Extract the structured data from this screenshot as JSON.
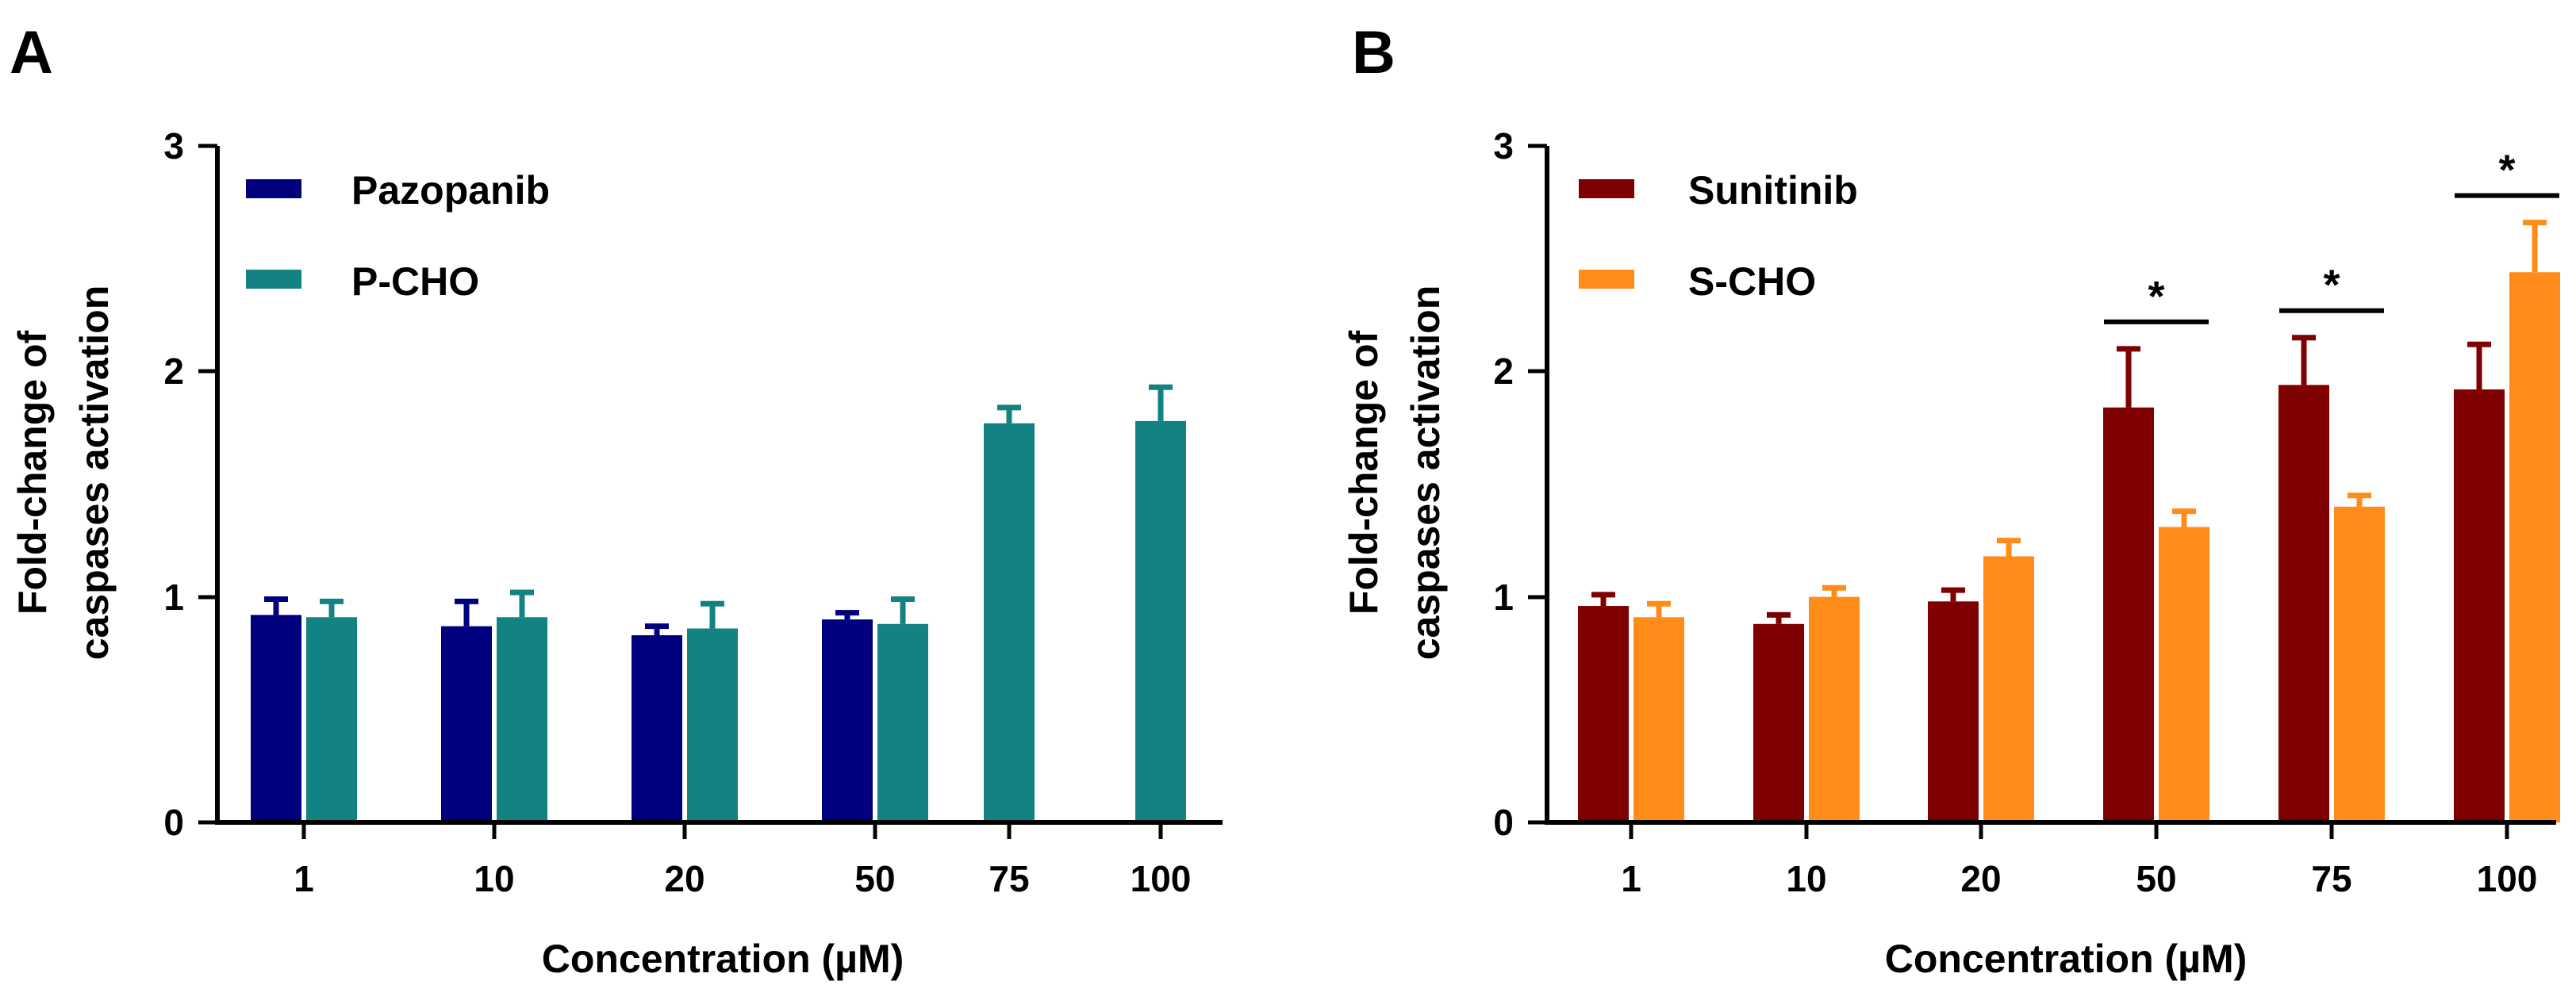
{
  "chart_data": [
    {
      "type": "bar",
      "panel_label": "A",
      "title": "",
      "xlabel": "Concentration (µM)",
      "ylabel_line1": "Fold-change of",
      "ylabel_line2": "caspases activation",
      "ylim": [
        0,
        3
      ],
      "yticks": [
        0,
        1,
        2,
        3
      ],
      "ytick_labels": [
        "0",
        "1",
        "2",
        "3"
      ],
      "categories": [
        "1",
        "10",
        "20",
        "50",
        "75",
        "100"
      ],
      "legend_position": "top-left",
      "series": [
        {
          "name": "Pazopanib",
          "color": "#00007f",
          "values": [
            0.92,
            0.87,
            0.83,
            0.9,
            null,
            null
          ],
          "errors": [
            0.07,
            0.11,
            0.04,
            0.03,
            null,
            null
          ]
        },
        {
          "name": "P-CHO",
          "color": "#128282",
          "values": [
            0.91,
            0.91,
            0.86,
            0.88,
            1.77,
            1.78
          ],
          "errors": [
            0.07,
            0.11,
            0.11,
            0.11,
            0.07,
            0.15
          ]
        }
      ],
      "significance": []
    },
    {
      "type": "bar",
      "panel_label": "B",
      "title": "",
      "xlabel": "Concentration (µM)",
      "ylabel_line1": "Fold-change of",
      "ylabel_line2": "caspases activation",
      "ylim": [
        0,
        3
      ],
      "yticks": [
        0,
        1,
        2,
        3
      ],
      "ytick_labels": [
        "0",
        "1",
        "2",
        "3"
      ],
      "categories": [
        "1",
        "10",
        "20",
        "50",
        "75",
        "100"
      ],
      "legend_position": "top-left",
      "series": [
        {
          "name": "Sunitinib",
          "color": "#7f0000",
          "values": [
            0.96,
            0.88,
            0.98,
            1.84,
            1.94,
            1.92
          ],
          "errors": [
            0.05,
            0.04,
            0.05,
            0.26,
            0.21,
            0.2
          ]
        },
        {
          "name": "S-CHO",
          "color": "#ff8c19",
          "values": [
            0.91,
            1.0,
            1.18,
            1.31,
            1.4,
            2.44
          ],
          "errors": [
            0.06,
            0.04,
            0.07,
            0.07,
            0.05,
            0.22
          ]
        }
      ],
      "significance": [
        {
          "category": "50",
          "label": "*"
        },
        {
          "category": "75",
          "label": "*"
        },
        {
          "category": "100",
          "label": "*"
        }
      ]
    }
  ]
}
